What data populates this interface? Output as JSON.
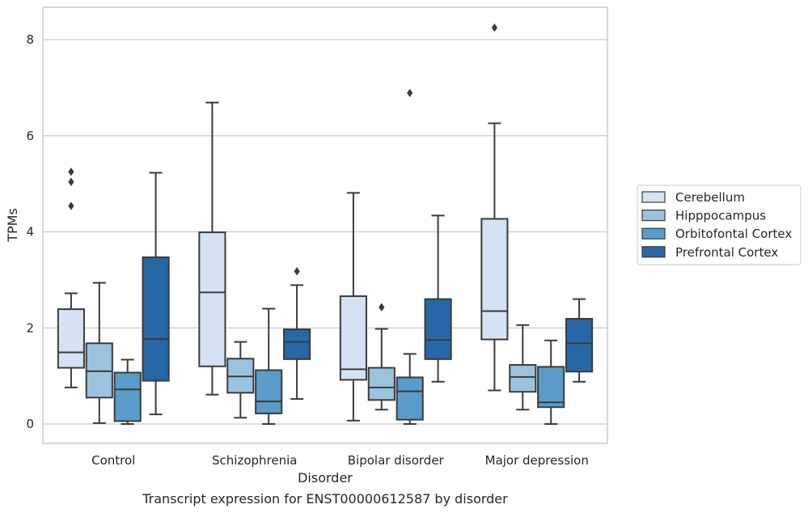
{
  "chart_data": {
    "type": "box",
    "title": "",
    "caption": "Transcript expression for ENST00000612587 by disorder",
    "xlabel": "Disorder",
    "ylabel": "TPMs",
    "ylim": [
      -0.4,
      8.7
    ],
    "yticks": [
      0,
      2,
      4,
      6,
      8
    ],
    "grid": "horizontal",
    "legend_position": "right",
    "categories": [
      "Control",
      "Schizophrenia",
      "Bipolar disorder",
      "Major depression"
    ],
    "series": [
      {
        "name": "Cerebellum",
        "color": "#d4e2f1",
        "boxes": [
          {
            "whislo": 0.76,
            "q1": 1.17,
            "med": 1.49,
            "q3": 2.39,
            "whishi": 2.72,
            "fliers": [
              5.25,
              5.04,
              4.54
            ]
          },
          {
            "whislo": 0.61,
            "q1": 1.2,
            "med": 2.74,
            "q3": 3.99,
            "whishi": 6.69,
            "fliers": []
          },
          {
            "whislo": 0.07,
            "q1": 0.92,
            "med": 1.14,
            "q3": 2.66,
            "whishi": 4.81,
            "fliers": []
          },
          {
            "whislo": 0.7,
            "q1": 1.76,
            "med": 2.35,
            "q3": 4.27,
            "whishi": 6.26,
            "fliers": [
              8.25
            ]
          }
        ]
      },
      {
        "name": "Hipppocampus",
        "color": "#9bc3de",
        "boxes": [
          {
            "whislo": 0.02,
            "q1": 0.55,
            "med": 1.1,
            "q3": 1.68,
            "whishi": 2.94,
            "fliers": []
          },
          {
            "whislo": 0.13,
            "q1": 0.65,
            "med": 0.99,
            "q3": 1.36,
            "whishi": 1.71,
            "fliers": []
          },
          {
            "whislo": 0.3,
            "q1": 0.5,
            "med": 0.76,
            "q3": 1.17,
            "whishi": 1.98,
            "fliers": [
              2.43
            ]
          },
          {
            "whislo": 0.3,
            "q1": 0.67,
            "med": 0.98,
            "q3": 1.23,
            "whishi": 2.06,
            "fliers": []
          }
        ]
      },
      {
        "name": "Orbitofontal Cortex",
        "color": "#5a9bc9",
        "boxes": [
          {
            "whislo": 0.0,
            "q1": 0.06,
            "med": 0.72,
            "q3": 1.07,
            "whishi": 1.34,
            "fliers": []
          },
          {
            "whislo": 0.0,
            "q1": 0.22,
            "med": 0.47,
            "q3": 1.12,
            "whishi": 2.4,
            "fliers": []
          },
          {
            "whislo": 0.0,
            "q1": 0.09,
            "med": 0.68,
            "q3": 0.97,
            "whishi": 1.46,
            "fliers": [
              6.89
            ]
          },
          {
            "whislo": 0.0,
            "q1": 0.35,
            "med": 0.45,
            "q3": 1.19,
            "whishi": 1.74,
            "fliers": []
          }
        ]
      },
      {
        "name": "Prefrontal Cortex",
        "color": "#2767a6",
        "boxes": [
          {
            "whislo": 0.2,
            "q1": 0.9,
            "med": 1.77,
            "q3": 3.47,
            "whishi": 5.23,
            "fliers": []
          },
          {
            "whislo": 0.52,
            "q1": 1.35,
            "med": 1.71,
            "q3": 1.97,
            "whishi": 2.89,
            "fliers": [
              3.18
            ]
          },
          {
            "whislo": 0.88,
            "q1": 1.35,
            "med": 1.75,
            "q3": 2.6,
            "whishi": 4.34,
            "fliers": []
          },
          {
            "whislo": 0.88,
            "q1": 1.09,
            "med": 1.68,
            "q3": 2.19,
            "whishi": 2.6,
            "fliers": []
          }
        ]
      }
    ]
  }
}
